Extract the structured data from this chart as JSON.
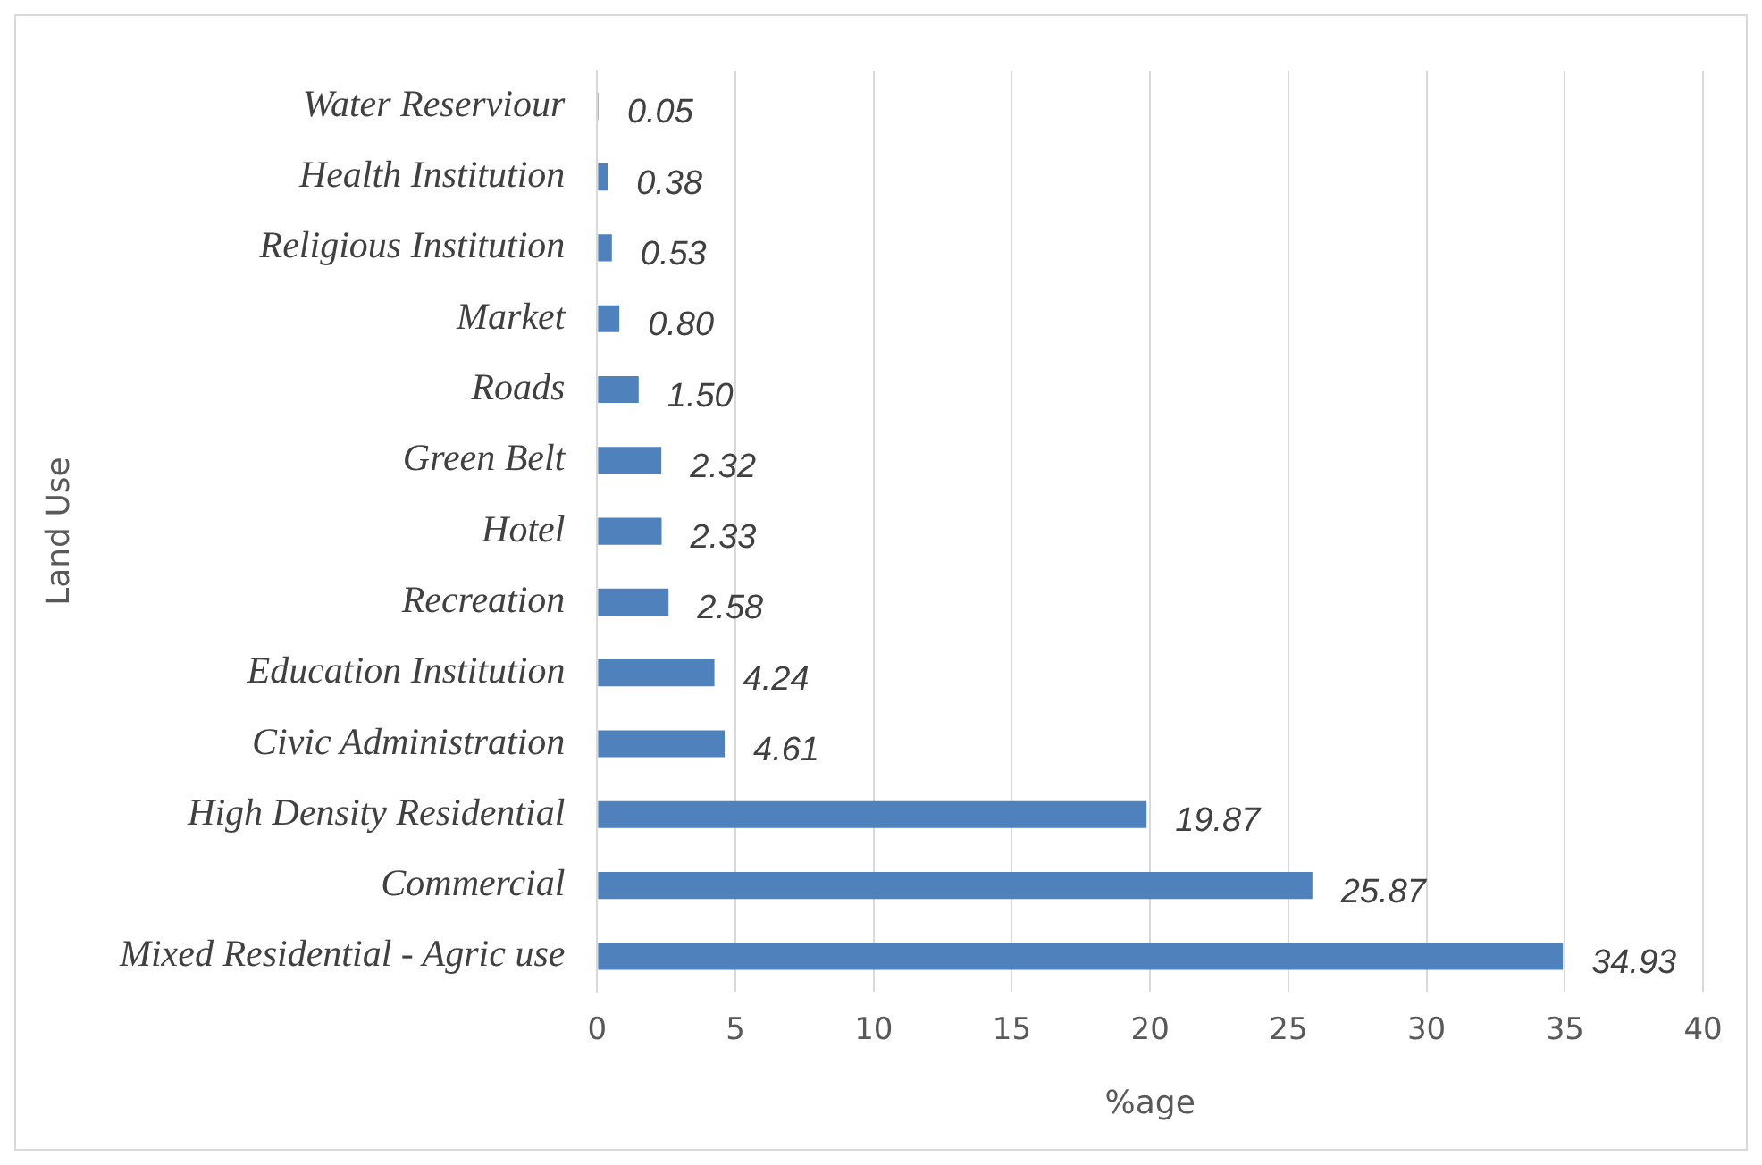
{
  "chart_data": {
    "type": "bar",
    "orientation": "horizontal",
    "xlabel": "%age",
    "ylabel": "Land Use",
    "categories": [
      "Water Reserviour",
      "Health Institution",
      "Religious Institution",
      "Market",
      "Roads",
      "Green Belt",
      "Hotel",
      "Recreation",
      "Education Institution",
      "Civic Administration",
      "High Density Residential",
      "Commercial",
      "Mixed Residential - Agric use"
    ],
    "values": [
      0.05,
      0.38,
      0.53,
      0.8,
      1.5,
      2.32,
      2.33,
      2.58,
      4.24,
      4.61,
      19.87,
      25.87,
      34.93
    ],
    "value_labels": [
      "0.05",
      "0.38",
      "0.53",
      "0.80",
      "1.50",
      "2.32",
      "2.33",
      "2.58",
      "4.24",
      "4.61",
      "19.87",
      "25.87",
      "34.93"
    ],
    "color": "#4f81bd",
    "xlim": [
      0,
      40
    ],
    "xticks": [
      0,
      5,
      10,
      15,
      20,
      25,
      30,
      35,
      40
    ],
    "grid": "x"
  }
}
